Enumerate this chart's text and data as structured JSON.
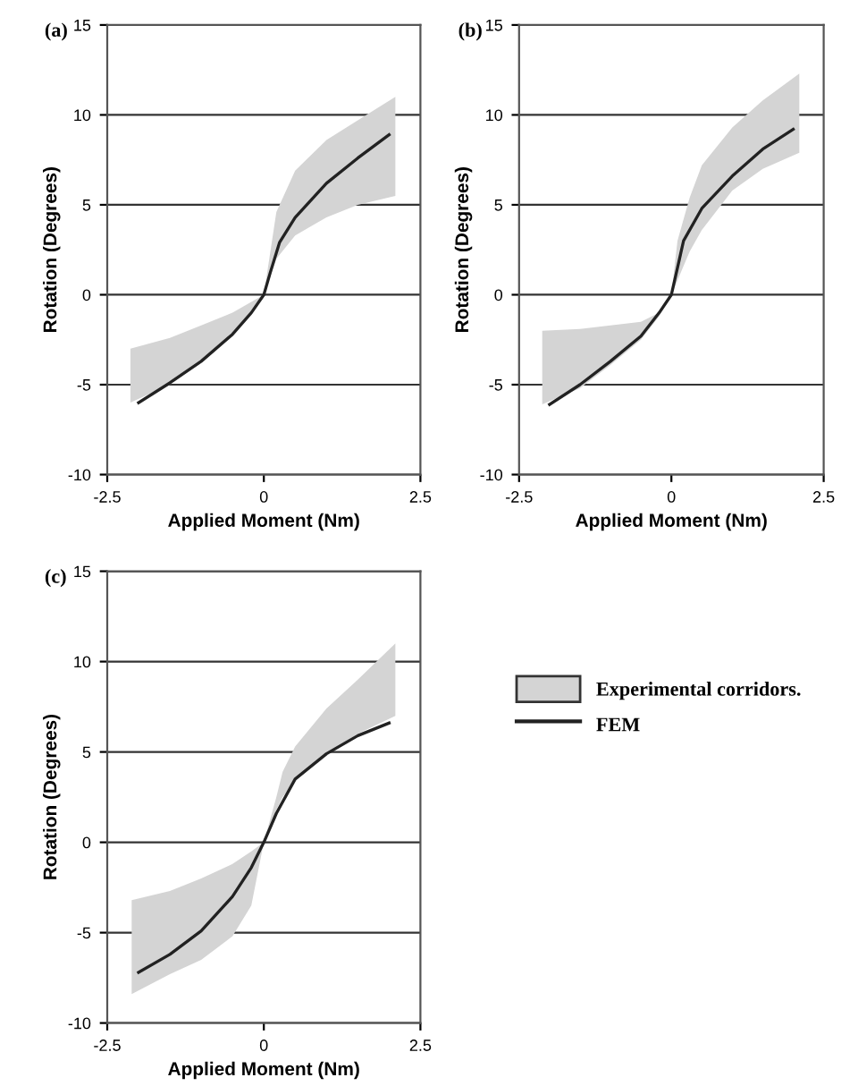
{
  "chart_data": [
    {
      "type": "line",
      "title": "(a)",
      "xlabel": "Applied Moment (Nm)",
      "ylabel": "Rotation (Degrees)",
      "xlim": [
        -2.5,
        2.5
      ],
      "xticks": [
        -2.5,
        0,
        2.5
      ],
      "ylim": [
        -10,
        15
      ],
      "yticks": [
        -10,
        -5,
        0,
        5,
        10,
        15
      ],
      "grid": "y",
      "legend": false,
      "series": [
        {
          "color": "#d4d4d4",
          "x": [
            -2.13,
            -1.5,
            -1,
            -0.5,
            0,
            0.2,
            0.5,
            1,
            1.5,
            2.1
          ],
          "values": [
            null,
            null,
            null,
            null,
            null,
            null,
            null,
            null,
            null,
            null
          ],
          "lower": [
            -6,
            -5.0,
            -3.8,
            -2.2,
            0,
            2,
            3.3,
            4.3,
            5.0,
            5.5
          ],
          "upper": [
            -3,
            -2.4,
            -1.7,
            -1.0,
            0,
            4.6,
            6.9,
            8.6,
            9.7,
            11
          ]
        },
        {
          "type": "line",
          "color": "#222222",
          "x": [
            -2,
            -1.5,
            -1,
            -0.5,
            -0.2,
            0,
            0.1,
            0.25,
            0.5,
            1,
            1.5,
            2
          ],
          "values": [
            -6.0,
            -4.9,
            -3.7,
            -2.2,
            -1,
            0,
            1.2,
            2.9,
            4.3,
            6.2,
            7.6,
            8.9
          ]
        }
      ]
    },
    {
      "type": "line",
      "title": "(b)",
      "xlabel": "Applied Moment (Nm)",
      "ylabel": "Rotation (Degrees)",
      "xlim": [
        -2.5,
        2.5
      ],
      "xticks": [
        -2.5,
        0,
        2.5
      ],
      "ylim": [
        -10,
        15
      ],
      "yticks": [
        -10,
        -5,
        0,
        5,
        10,
        15
      ],
      "grid": "y",
      "legend": false,
      "series": [
        {
          "color": "#d4d4d4",
          "x": [
            -2.12,
            -1.5,
            -1,
            -0.5,
            -0.2,
            0,
            0.1,
            0.3,
            0.5,
            1,
            1.5,
            2.1
          ],
          "values": [
            null,
            null,
            null,
            null,
            null,
            null,
            null,
            null,
            null,
            null,
            null,
            null
          ],
          "lower": [
            -6.1,
            -5.2,
            -3.9,
            -2.5,
            -1.2,
            0,
            0.8,
            2.4,
            3.6,
            5.8,
            7.0,
            7.9
          ],
          "upper": [
            -2,
            -1.9,
            -1.7,
            -1.5,
            -1,
            0,
            3,
            5.4,
            7.2,
            9.3,
            10.8,
            12.3
          ]
        },
        {
          "type": "line",
          "color": "#222222",
          "x": [
            -2,
            -1.5,
            -1,
            -0.5,
            -0.2,
            0,
            0.1,
            0.2,
            0.5,
            1,
            1.5,
            2
          ],
          "values": [
            -6.1,
            -5.0,
            -3.7,
            -2.3,
            -1,
            0,
            1.5,
            3.0,
            4.8,
            6.6,
            8.1,
            9.2
          ]
        }
      ]
    },
    {
      "type": "line",
      "title": "(c)",
      "xlabel": "Applied Moment (Nm)",
      "ylabel": "Rotation (Degrees)",
      "xlim": [
        -2.5,
        2.5
      ],
      "xticks": [
        -2.5,
        0,
        2.5
      ],
      "ylim": [
        -10,
        15
      ],
      "yticks": [
        -10,
        -5,
        0,
        5,
        10,
        15
      ],
      "grid": "y",
      "legend": "right",
      "series": [
        {
          "name": "Experimental corridors.",
          "color": "#d4d4d4",
          "x": [
            -2.11,
            -1.5,
            -1,
            -0.5,
            -0.2,
            0,
            0.2,
            0.3,
            0.5,
            1,
            1.5,
            2.1
          ],
          "values": [
            null,
            null,
            null,
            null,
            null,
            null,
            null,
            null,
            null,
            null,
            null,
            null
          ],
          "lower": [
            -8.4,
            -7.3,
            -6.5,
            -5.2,
            -3.5,
            0,
            1.8,
            2.5,
            3.4,
            4.9,
            6.0,
            7.0
          ],
          "upper": [
            -3.2,
            -2.7,
            -2.0,
            -1.2,
            -0.5,
            0,
            2.5,
            3.9,
            5.3,
            7.4,
            9.0,
            11
          ]
        },
        {
          "type": "line",
          "name": "FEM",
          "color": "#222222",
          "x": [
            -2,
            -1.5,
            -1,
            -0.5,
            -0.2,
            0,
            0.2,
            0.5,
            1,
            1.5,
            2
          ],
          "values": [
            -7.2,
            -6.2,
            -4.9,
            -3.0,
            -1.4,
            0,
            1.6,
            3.5,
            4.9,
            5.9,
            6.6
          ]
        }
      ]
    }
  ]
}
